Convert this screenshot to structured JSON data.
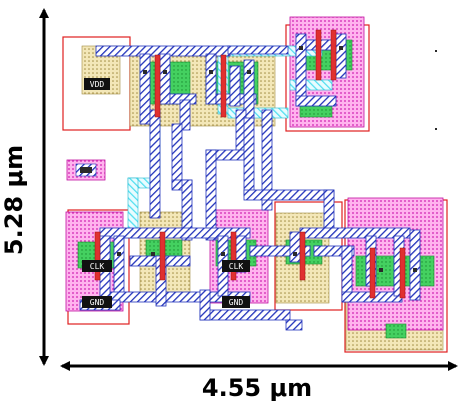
{
  "dimensions": {
    "width_label": "4.55 μm",
    "height_label": "5.28 μm"
  },
  "pins": {
    "vdd": "VDD",
    "gnd_left": "GND",
    "clk_left": "CLK",
    "clk_mid": "CLK",
    "gnd_mid": "GND"
  },
  "colors": {
    "metal1": "#2233bb",
    "metal2": "#55e0f0",
    "poly": "#e03030",
    "diffusion": "#33cc55",
    "nwell": "#ff66dd",
    "pselect": "#e8d9a0",
    "boundary": "#e02020"
  }
}
